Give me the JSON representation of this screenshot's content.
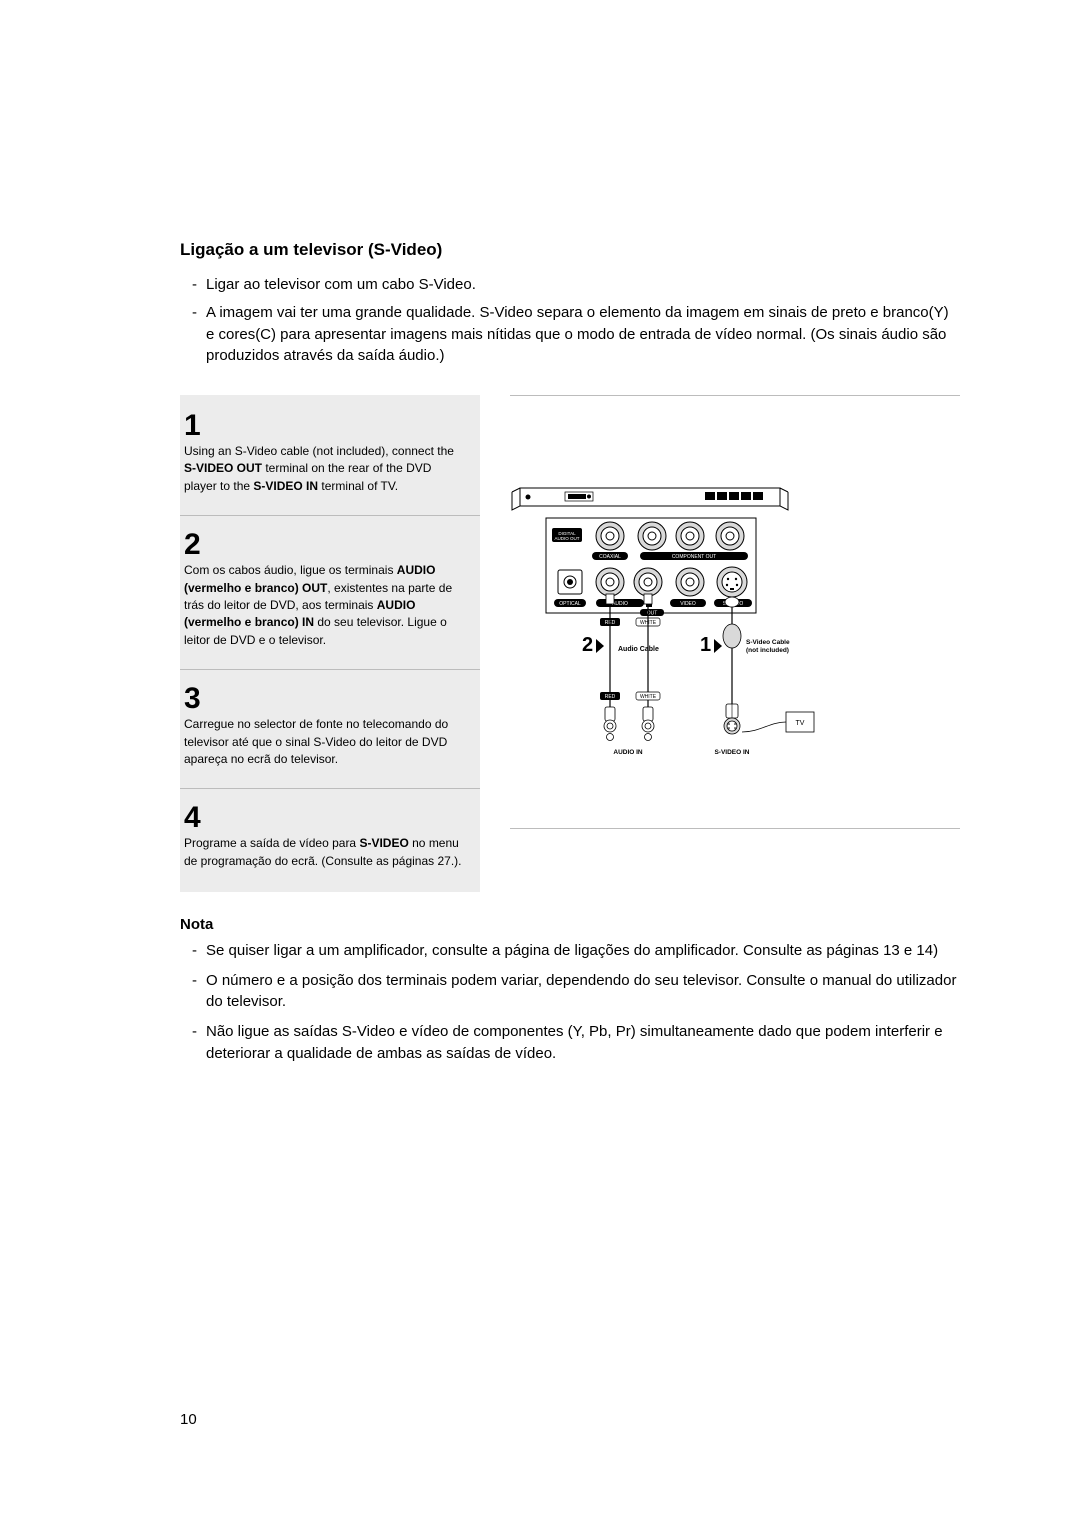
{
  "section_title": "Ligação a um televisor (S-Video)",
  "intro_items": [
    "Ligar ao televisor com um cabo S-Video.",
    "A imagem vai ter uma grande qualidade. S-Video separa o elemento da imagem em sinais de preto e branco(Y) e cores(C) para apresentar imagens mais nítidas que o modo de entrada de vídeo normal. (Os sinais áudio são produzidos através da saída áudio.)"
  ],
  "steps": [
    {
      "num": "1",
      "html": "Using an S-Video cable (not included), connect the <b>S-VIDEO OUT</b> terminal on the rear of the DVD player to the <b>S-VIDEO IN</b> terminal of TV."
    },
    {
      "num": "2",
      "html": "Com os cabos áudio, ligue os terminais <b>AUDIO (vermelho e branco) OUT</b>, existentes na parte de trás do leitor de DVD, aos terminais <b>AUDIO (vermelho e branco) IN</b> do seu televisor. Ligue o leitor de DVD e o televisor."
    },
    {
      "num": "3",
      "html": "Carregue no selector de fonte no telecomando do televisor até que o sinal S-Video do leitor de DVD apareça no ecrã do televisor."
    },
    {
      "num": "4",
      "html": "Programe a saída de vídeo para <b>S-VIDEO</b> no menu de programação do ecrã. (Consulte as páginas 27.)."
    }
  ],
  "diagram": {
    "labels": {
      "digital_audio_out": "DIGITAL AUDIO OUT",
      "coaxial": "COAXIAL",
      "component_out": "COMPONENT OUT",
      "optical": "OPTICAL",
      "audio": "AUDIO",
      "video": "VIDEO",
      "s_video": "S-VIDEO",
      "out": "OUT",
      "red": "RED",
      "white": "WHITE",
      "audio_cable": "Audio Cable",
      "svideo_cable_1": "S-Video Cable",
      "svideo_cable_2": "(not included)",
      "marker2": "2",
      "marker1": "1",
      "audio_in": "AUDIO IN",
      "s_video_in": "S-VIDEO IN",
      "tv": "TV"
    },
    "colors": {
      "body": "#ffffff",
      "border": "#000000",
      "black_cap": "#000000",
      "grey_fill": "#d9d9d9"
    }
  },
  "note_title": "Nota",
  "note_items": [
    "Se quiser ligar a um amplificador, consulte a página de ligações do amplificador. Consulte as páginas 13 e 14)",
    "O número e a posição dos terminais podem variar, dependendo do seu televisor. Consulte o manual do utilizador do televisor.",
    "Não ligue as saídas S-Video e vídeo de componentes (Y, Pb, Pr) simultaneamente dado que podem interferir e deteriorar a qualidade de ambas as saídas de vídeo."
  ],
  "page_number": "10"
}
